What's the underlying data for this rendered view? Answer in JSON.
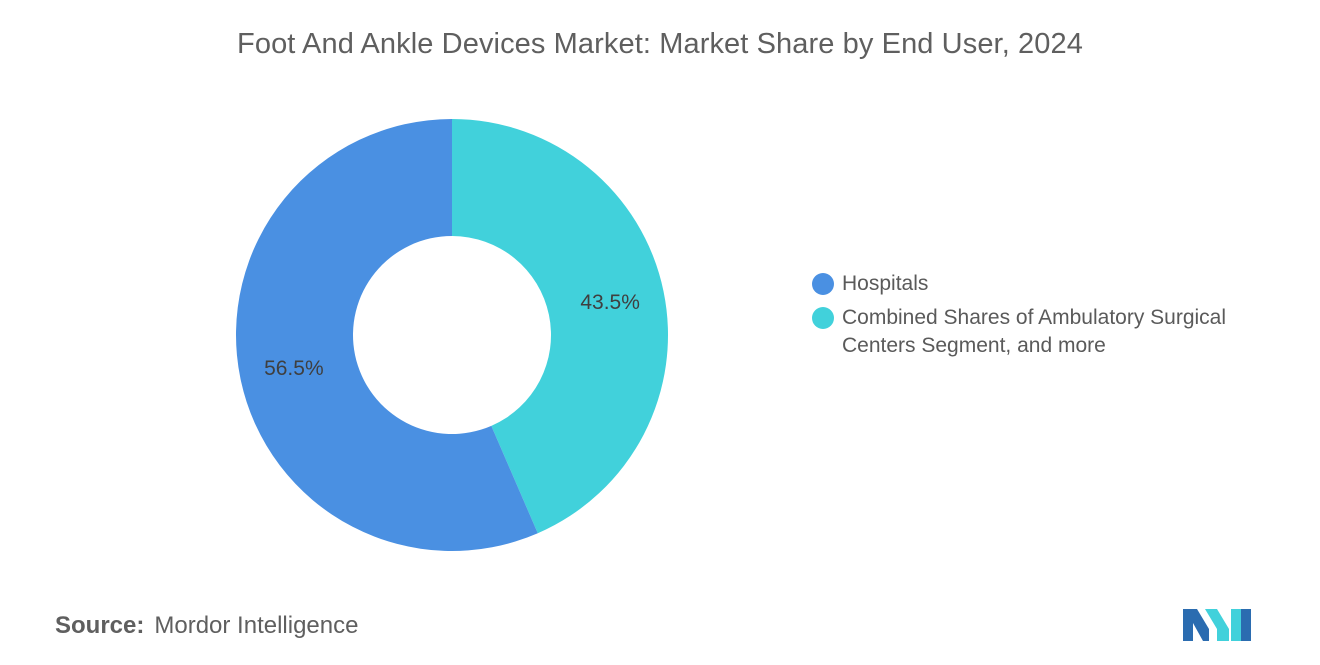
{
  "chart_data": {
    "type": "pie",
    "donut": true,
    "title": "Foot And Ankle Devices Market: Market Share by End User, 2024",
    "slices": [
      {
        "label": "Hospitals",
        "value": 56.5,
        "value_label": "56.5%",
        "color": "#4a90e2"
      },
      {
        "label": "Combined Shares of Ambulatory Surgical Centers Segment, and more",
        "value": 43.5,
        "value_label": "43.5%",
        "color": "#41d1db"
      }
    ],
    "legend_placement": "right"
  },
  "source": {
    "key": "Source:",
    "value": "Mordor Intelligence"
  },
  "logo": {
    "icon": "mordor-intelligence-logo-icon",
    "colors": [
      "#2b6cb0",
      "#41d1db"
    ]
  }
}
